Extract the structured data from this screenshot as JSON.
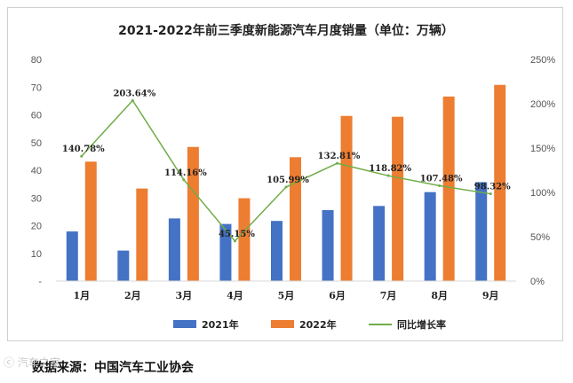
{
  "chart_data": {
    "type": "bar",
    "title": "2021-2022年前三季度新能源汽车月度销量（单位：万辆）",
    "categories": [
      "1月",
      "2月",
      "3月",
      "4月",
      "5月",
      "6月",
      "7月",
      "8月",
      "9月"
    ],
    "series": [
      {
        "name": "2021年",
        "kind": "bar",
        "axis": "left",
        "color": "#4472C4",
        "values": [
          17.9,
          11.0,
          22.6,
          20.6,
          21.7,
          25.6,
          27.1,
          32.1,
          35.7
        ]
      },
      {
        "name": "2022年",
        "kind": "bar",
        "axis": "left",
        "color": "#ED7D31",
        "values": [
          43.1,
          33.4,
          48.4,
          29.9,
          44.7,
          59.6,
          59.3,
          66.6,
          70.8
        ]
      },
      {
        "name": "同比增长率",
        "kind": "line",
        "axis": "right",
        "color": "#70AD47",
        "values": [
          140.78,
          203.64,
          114.16,
          45.15,
          105.99,
          132.81,
          118.82,
          107.48,
          98.32
        ],
        "labels": [
          "140.78%",
          "203.64%",
          "114.16%",
          "45.15%",
          "105.99%",
          "132.81%",
          "118.82%",
          "107.48%",
          "98.32%"
        ]
      }
    ],
    "ylim": [
      0,
      80
    ],
    "yticks": [
      "-",
      "10",
      "20",
      "30",
      "40",
      "50",
      "60",
      "70",
      "80"
    ],
    "y2lim": [
      0,
      250
    ],
    "y2ticks": [
      "0%",
      "50%",
      "100%",
      "150%",
      "200%",
      "250%"
    ],
    "legend_position": "bottom",
    "grid": false
  },
  "source_text": "数据来源：中国汽车工业协会",
  "watermark_text": "汽车之家"
}
